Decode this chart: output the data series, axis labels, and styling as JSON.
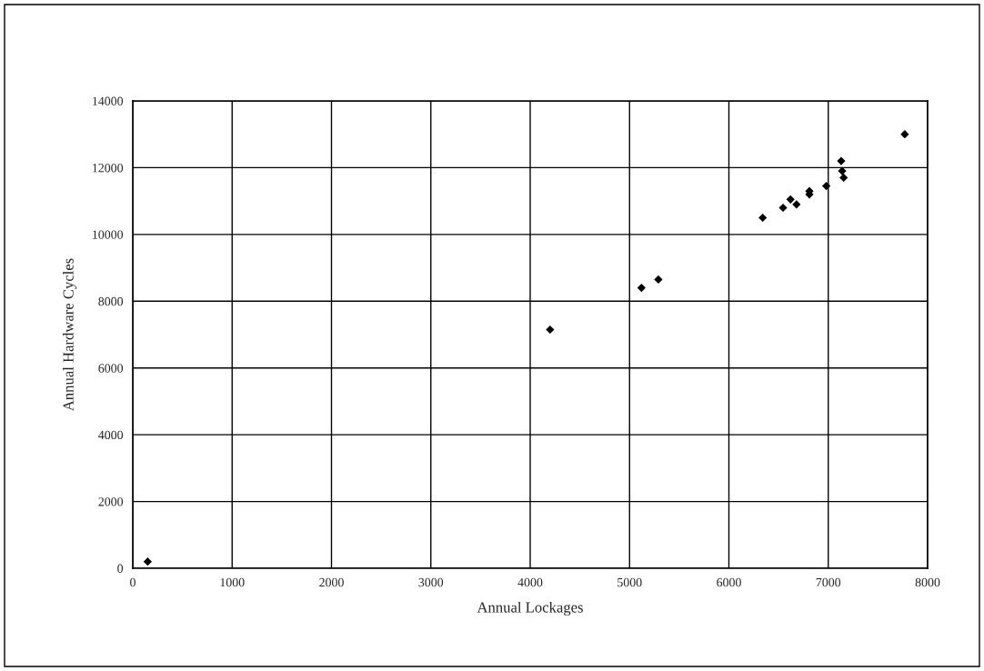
{
  "chart_data": {
    "type": "scatter",
    "xlabel": "Annual Lockages",
    "ylabel": "Annual Hardware Cycles",
    "x": [
      150,
      4200,
      5120,
      5290,
      6340,
      6545,
      6620,
      6680,
      6810,
      6810,
      6980,
      7130,
      7140,
      7155,
      7770
    ],
    "values": [
      200,
      7150,
      8400,
      8650,
      10500,
      10800,
      11050,
      10900,
      11300,
      11200,
      11450,
      12200,
      11900,
      11700,
      13000
    ],
    "color": "#000000",
    "marker": "diamond",
    "xlim": [
      0,
      8000
    ],
    "xticks": [
      0,
      1000,
      2000,
      3000,
      4000,
      5000,
      6000,
      7000,
      8000
    ],
    "ylim": [
      0,
      14000
    ],
    "yticks": [
      0,
      2000,
      4000,
      6000,
      8000,
      10000,
      12000,
      14000
    ],
    "grid": true,
    "legend": false
  }
}
